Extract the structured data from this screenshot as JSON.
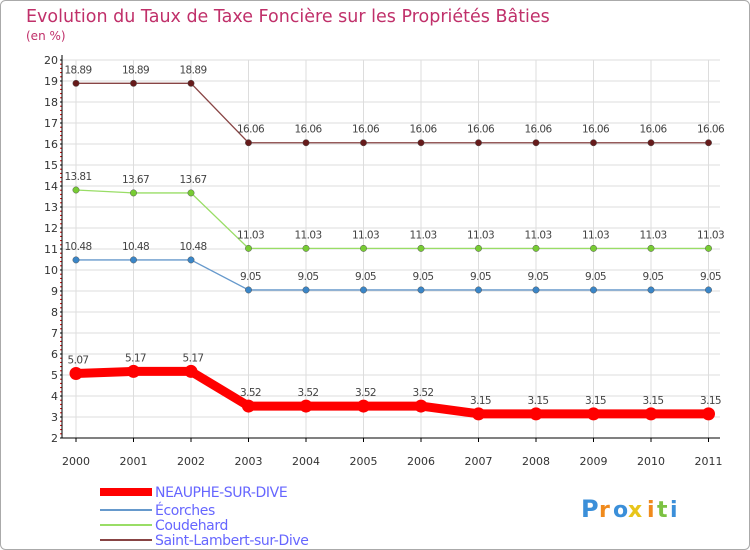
{
  "chart_data": {
    "type": "line",
    "title": "Evolution du Taux de Taxe Foncière sur les Propriétés Bâties",
    "subtitle": "(en %)",
    "x": [
      "2000",
      "2001",
      "2002",
      "2003",
      "2004",
      "2005",
      "2006",
      "2007",
      "2008",
      "2009",
      "2010",
      "2011"
    ],
    "ylim": [
      2,
      20
    ],
    "yticks": [
      "2",
      "3",
      "4",
      "5",
      "6",
      "7",
      "8",
      "9",
      "10",
      "11",
      "12",
      "13",
      "14",
      "15",
      "16",
      "17",
      "18",
      "19",
      "20"
    ],
    "grid": true,
    "legend_position": "bottom-left",
    "series": [
      {
        "name": "NEAUPHE-SUR-DIVE",
        "color": "#ff0000",
        "highlight": true,
        "values": [
          5.07,
          5.17,
          5.17,
          3.52,
          3.52,
          3.52,
          3.52,
          3.15,
          3.15,
          3.15,
          3.15,
          3.15
        ],
        "labels": [
          "5.07",
          "5.17",
          "5.17",
          "3.52",
          "3.52",
          "3.52",
          "3.52",
          "3.15",
          "3.15",
          "3.15",
          "3.15",
          "3.15"
        ]
      },
      {
        "name": "Écorches",
        "color": "#6699cc",
        "marker": "#3a86c8",
        "values": [
          10.48,
          10.48,
          10.48,
          9.05,
          9.05,
          9.05,
          9.05,
          9.05,
          9.05,
          9.05,
          9.05,
          9.05
        ],
        "labels": [
          "10.48",
          "10.48",
          "10.48",
          "9.05",
          "9.05",
          "9.05",
          "9.05",
          "9.05",
          "9.05",
          "9.05",
          "9.05",
          "9.05"
        ]
      },
      {
        "name": "Coudehard",
        "color": "#99dd66",
        "marker": "#77cc33",
        "values": [
          13.81,
          13.67,
          13.67,
          11.03,
          11.03,
          11.03,
          11.03,
          11.03,
          11.03,
          11.03,
          11.03,
          11.03
        ],
        "labels": [
          "13.81",
          "13.67",
          "13.67",
          "11.03",
          "11.03",
          "11.03",
          "11.03",
          "11.03",
          "11.03",
          "11.03",
          "11.03",
          "11.03"
        ]
      },
      {
        "name": "Saint-Lambert-sur-Dive",
        "color": "#884444",
        "marker": "#661a1a",
        "values": [
          18.89,
          18.89,
          18.89,
          16.06,
          16.06,
          16.06,
          16.06,
          16.06,
          16.06,
          16.06,
          16.06,
          16.06
        ],
        "labels": [
          "18.89",
          "18.89",
          "18.89",
          "16.06",
          "16.06",
          "16.06",
          "16.06",
          "16.06",
          "16.06",
          "16.06",
          "16.06",
          "16.06"
        ]
      }
    ]
  },
  "brand": {
    "letters": [
      "P",
      "r",
      "o",
      "x",
      "i",
      "t",
      "i"
    ],
    "colors": [
      "#3b8fd9",
      "#f08a1c",
      "#3b8fd9",
      "#e8c51a",
      "#f08a1c",
      "#7cc242",
      "#3b8fd9"
    ]
  },
  "colors": {
    "title": "#c0306a",
    "frame": "#aaaaaa",
    "grid": "#dddddd",
    "axis": "#000000",
    "legend_text": "#6666ff"
  }
}
